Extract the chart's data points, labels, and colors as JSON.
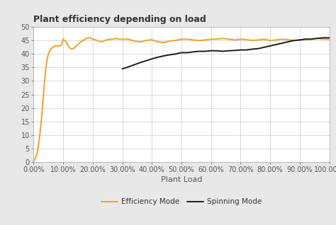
{
  "title": "Plant efficiency depending on load",
  "xlabel": "Plant Load",
  "xlim": [
    0.0,
    1.0
  ],
  "ylim": [
    0,
    50
  ],
  "yticks": [
    0,
    5,
    10,
    15,
    20,
    25,
    30,
    35,
    40,
    45,
    50
  ],
  "xticks": [
    0.0,
    0.1,
    0.2,
    0.3,
    0.4,
    0.5,
    0.6,
    0.7,
    0.8,
    0.9,
    1.0
  ],
  "efficiency_mode_color": "#F5A023",
  "spinning_mode_color": "#1C1C1C",
  "background_color": "#E8E8E8",
  "plot_bg_color": "#FFFFFF",
  "grid_color": "#CCCCCC",
  "legend_labels": [
    "Efficiency Mode",
    "Spinning Mode"
  ],
  "efficiency_x": [
    0.0,
    0.005,
    0.01,
    0.015,
    0.02,
    0.025,
    0.03,
    0.035,
    0.04,
    0.045,
    0.05,
    0.055,
    0.06,
    0.065,
    0.07,
    0.075,
    0.08,
    0.085,
    0.09,
    0.095,
    0.1,
    0.105,
    0.11,
    0.115,
    0.12,
    0.125,
    0.13,
    0.135,
    0.14,
    0.145,
    0.15,
    0.155,
    0.16,
    0.165,
    0.17,
    0.175,
    0.18,
    0.185,
    0.19,
    0.195,
    0.2,
    0.21,
    0.22,
    0.23,
    0.24,
    0.25,
    0.26,
    0.27,
    0.28,
    0.29,
    0.3,
    0.32,
    0.34,
    0.36,
    0.38,
    0.4,
    0.42,
    0.44,
    0.46,
    0.48,
    0.5,
    0.52,
    0.54,
    0.56,
    0.58,
    0.6,
    0.62,
    0.64,
    0.66,
    0.68,
    0.7,
    0.72,
    0.74,
    0.76,
    0.78,
    0.8,
    0.82,
    0.84,
    0.86,
    0.88,
    0.9,
    0.92,
    0.94,
    0.96,
    0.98,
    1.0
  ],
  "efficiency_y": [
    0.3,
    1.0,
    2.5,
    5.0,
    9.0,
    14.0,
    20.0,
    27.0,
    33.5,
    37.5,
    40.0,
    41.2,
    42.0,
    42.5,
    42.8,
    43.0,
    43.0,
    43.0,
    43.0,
    43.5,
    45.5,
    45.0,
    44.5,
    43.5,
    42.5,
    42.0,
    41.8,
    42.0,
    42.5,
    43.0,
    43.5,
    44.0,
    44.5,
    45.0,
    45.2,
    45.5,
    45.8,
    46.0,
    46.0,
    45.8,
    45.5,
    45.2,
    44.8,
    44.5,
    45.0,
    45.3,
    45.5,
    45.5,
    45.8,
    45.5,
    45.5,
    45.5,
    44.8,
    44.5,
    45.0,
    45.3,
    44.5,
    44.2,
    44.8,
    45.0,
    45.5,
    45.5,
    45.2,
    45.0,
    45.2,
    45.5,
    45.5,
    45.8,
    45.5,
    45.2,
    45.5,
    45.3,
    45.0,
    45.2,
    45.5,
    45.0,
    45.2,
    45.5,
    45.3,
    45.0,
    45.2,
    45.5,
    45.5,
    45.8,
    45.5,
    45.5
  ],
  "spinning_x": [
    0.3,
    0.32,
    0.34,
    0.36,
    0.38,
    0.4,
    0.42,
    0.44,
    0.46,
    0.48,
    0.5,
    0.52,
    0.54,
    0.56,
    0.58,
    0.6,
    0.62,
    0.64,
    0.66,
    0.68,
    0.7,
    0.72,
    0.74,
    0.76,
    0.78,
    0.8,
    0.82,
    0.84,
    0.86,
    0.88,
    0.9,
    0.92,
    0.94,
    0.96,
    0.98,
    1.0
  ],
  "spinning_y": [
    34.5,
    35.2,
    36.0,
    36.8,
    37.5,
    38.2,
    38.8,
    39.3,
    39.7,
    40.0,
    40.5,
    40.5,
    40.8,
    41.0,
    41.0,
    41.2,
    41.2,
    41.0,
    41.2,
    41.3,
    41.5,
    41.5,
    41.8,
    42.0,
    42.5,
    43.0,
    43.5,
    44.0,
    44.5,
    45.0,
    45.2,
    45.5,
    45.5,
    45.8,
    46.0,
    46.0
  ],
  "title_fontsize": 9,
  "tick_fontsize": 7,
  "xlabel_fontsize": 8,
  "legend_fontsize": 7.5,
  "linewidth": 1.4
}
